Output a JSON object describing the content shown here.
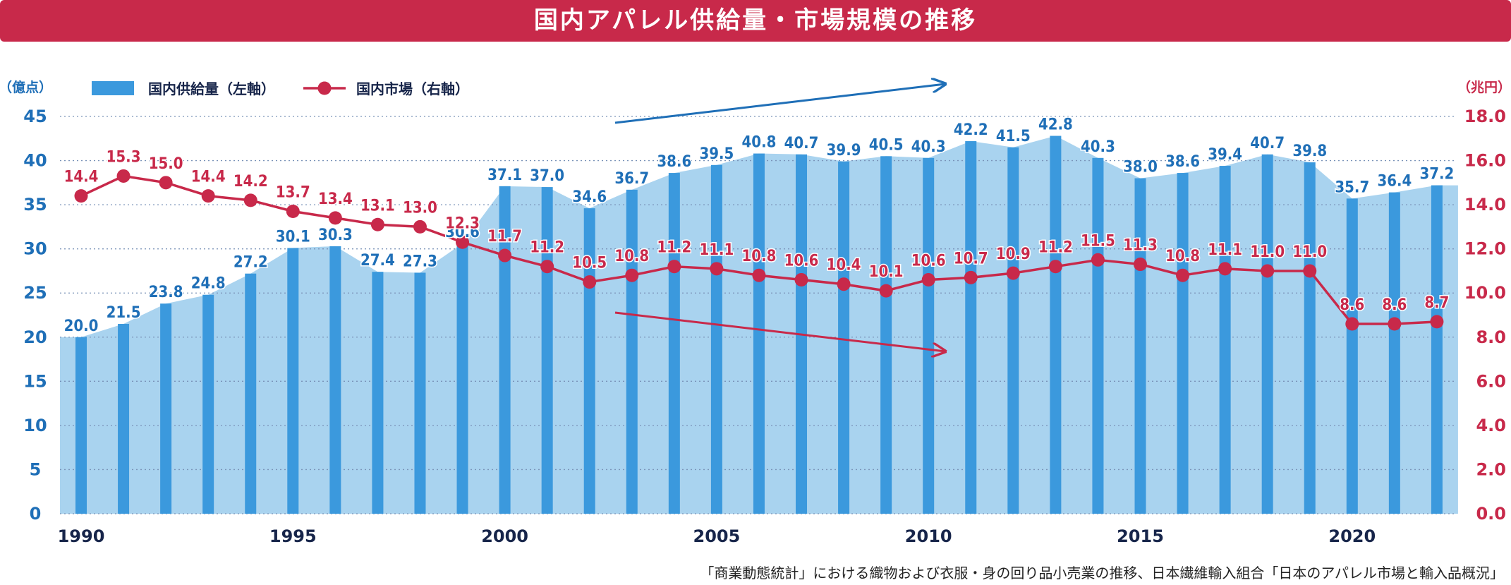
{
  "title": "国内アパレル供給量・市場規模の推移",
  "source": "「商業動態統計」における織物および衣服・身の回り品小売業の推移、日本繊維輸入組合「日本のアパレル市場と輸入品概況」",
  "colors": {
    "title_bg": "#c8294a",
    "supply_bar": "#3b99dd",
    "supply_area": "#a9d3ef",
    "market_line": "#c8294a",
    "left_axis": "#1f6fb7",
    "right_axis": "#c8294a",
    "dark_text": "#17254a"
  },
  "chart_data": {
    "type": "bar+line",
    "years": [
      1990,
      1991,
      1992,
      1993,
      1994,
      1995,
      1996,
      1997,
      1998,
      1999,
      2000,
      2001,
      2002,
      2003,
      2004,
      2005,
      2006,
      2007,
      2008,
      2009,
      2010,
      2011,
      2012,
      2013,
      2014,
      2015,
      2016,
      2017,
      2018,
      2019,
      2020,
      2021,
      2022
    ],
    "x_tick_labels": [
      "1990",
      "1995",
      "2000",
      "2005",
      "2010",
      "2015",
      "2020"
    ],
    "series": [
      {
        "name": "国内供給量（左軸）",
        "type": "bar",
        "axis": "left",
        "values": [
          20.0,
          21.5,
          23.8,
          24.8,
          27.2,
          30.1,
          30.3,
          27.4,
          27.3,
          30.6,
          37.1,
          37.0,
          34.6,
          36.7,
          38.6,
          39.5,
          40.8,
          40.7,
          39.9,
          40.5,
          40.3,
          42.2,
          41.5,
          42.8,
          40.3,
          38.0,
          38.6,
          39.4,
          40.7,
          39.8,
          35.7,
          36.4,
          37.2
        ]
      },
      {
        "name": "国内市場（右軸）",
        "type": "line",
        "axis": "right",
        "values": [
          14.4,
          15.3,
          15.0,
          14.4,
          14.2,
          13.7,
          13.4,
          13.1,
          13.0,
          12.3,
          11.7,
          11.2,
          10.5,
          10.8,
          11.2,
          11.1,
          10.8,
          10.6,
          10.4,
          10.1,
          10.6,
          10.7,
          10.9,
          11.2,
          11.5,
          11.3,
          10.8,
          11.1,
          11.0,
          11.0,
          8.6,
          8.6,
          8.7
        ]
      }
    ],
    "left_axis": {
      "label": "（億点）",
      "ticks": [
        "0",
        "5",
        "10",
        "15",
        "20",
        "25",
        "30",
        "35",
        "40",
        "45"
      ],
      "range": [
        0,
        45
      ]
    },
    "right_axis": {
      "label": "（兆円）",
      "ticks": [
        "0.0",
        "2.0",
        "4.0",
        "6.0",
        "8.0",
        "10.0",
        "12.0",
        "14.0",
        "16.0",
        "18.0"
      ],
      "range": [
        0,
        18
      ]
    },
    "legend_position": "top-left",
    "grid": "horizontal dotted",
    "annotations": [
      "upward arrow over supply (2003→2011)",
      "downward arrow under market (2003→2011)"
    ]
  }
}
